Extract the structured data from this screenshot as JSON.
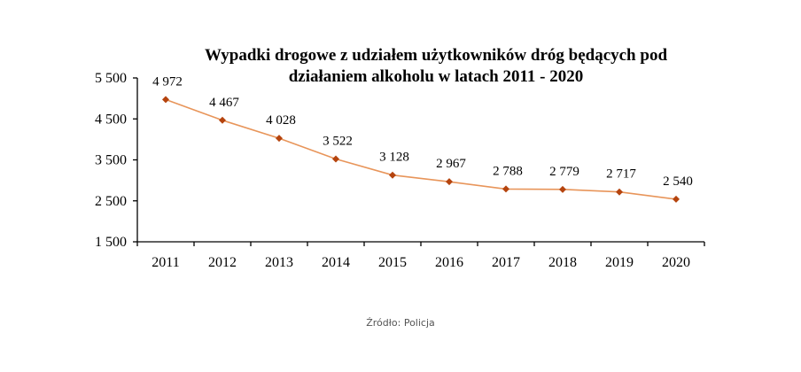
{
  "chart_data": {
    "type": "line",
    "title_lines": [
      "Wypadki drogowe z udziałem użytkowników dróg będących pod",
      "działaniem alkoholu  w latach 2011 - 2020"
    ],
    "categories": [
      "2011",
      "2012",
      "2013",
      "2014",
      "2015",
      "2016",
      "2017",
      "2018",
      "2019",
      "2020"
    ],
    "values": [
      4972,
      4467,
      4028,
      3522,
      3128,
      2967,
      2788,
      2779,
      2717,
      2540
    ],
    "data_labels": [
      "4 972",
      "4 467",
      "4 028",
      "3 522",
      "3 128",
      "2 967",
      "2 788",
      "2 779",
      "2 717",
      "2 540"
    ],
    "ylim": [
      1500,
      5500
    ],
    "yticks": [
      1500,
      2500,
      3500,
      4500,
      5500
    ],
    "ytick_labels": [
      "1 500",
      "2 500",
      "3 500",
      "4 500",
      "5 500"
    ],
    "xlabel": "",
    "ylabel": "",
    "grid": false,
    "legend": "none",
    "line_color": "#e8955a",
    "marker_color": "#b5440e",
    "marker": "diamond"
  },
  "source": "Źródło: Policja"
}
